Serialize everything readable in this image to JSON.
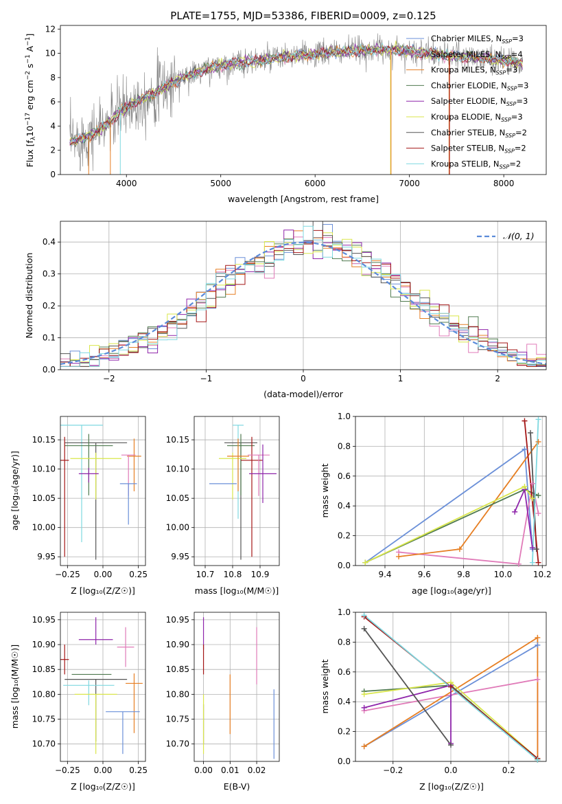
{
  "figure": {
    "title": "PLATE=1755, MJD=53386, FIBERID=0009, z=0.125"
  },
  "colors": {
    "Chabrier MILES": "#6a8fd8",
    "Salpeter MILES": "#e07ab8",
    "Kroupa MILES": "#e67e22",
    "Chabrier ELODIE": "#4f7a4f",
    "Salpeter ELODIE": "#8e24aa",
    "Kroupa ELODIE": "#d9e64a",
    "Chabrier STELIB": "#555555",
    "Salpeter STELIB": "#a31515",
    "Kroupa STELIB": "#7fd8e0",
    "gaussian": "#5b8bd9",
    "data": "#808080"
  },
  "chart_data": [
    {
      "id": "spectrum",
      "type": "line",
      "title": "PLATE=1755, MJD=53386, FIBERID=0009, z=0.125",
      "xlabel": "wavelength [Angstrom, rest frame]",
      "ylabel": "Flux [f_λ 10^-17 erg cm^-2 s^-1 A^-1]",
      "xlim": [
        3300,
        8450
      ],
      "ylim": [
        0,
        12.3
      ],
      "xticks": [
        4000,
        5000,
        6000,
        7000,
        8000
      ],
      "yticks": [
        0,
        2,
        4,
        6,
        8,
        10,
        12
      ],
      "grid": false,
      "legend_position": "right",
      "legend": [
        {
          "series": "Chabrier MILES",
          "text": "Chabrier MILES, N",
          "sub": "SSP",
          "suffix": "=3"
        },
        {
          "series": "Salpeter MILES",
          "text": "Salpeter MILES, N",
          "sub": "SSP",
          "suffix": "=4"
        },
        {
          "series": "Kroupa MILES",
          "text": "Kroupa MILES, N",
          "sub": "SSP",
          "suffix": "=3"
        },
        {
          "series": "Chabrier ELODIE",
          "text": "Chabrier ELODIE, N",
          "sub": "SSP",
          "suffix": "=3"
        },
        {
          "series": "Salpeter ELODIE",
          "text": "Salpeter ELODIE, N",
          "sub": "SSP",
          "suffix": "=3"
        },
        {
          "series": "Kroupa ELODIE",
          "text": "Kroupa ELODIE, N",
          "sub": "SSP",
          "suffix": "=3"
        },
        {
          "series": "Chabrier STELIB",
          "text": "Chabrier STELIB, N",
          "sub": "SSP",
          "suffix": "=2"
        },
        {
          "series": "Salpeter STELIB",
          "text": "Salpeter STELIB, N",
          "sub": "SSP",
          "suffix": "=2"
        },
        {
          "series": "Kroupa STELIB",
          "text": "Kroupa STELIB, N",
          "sub": "SSP",
          "suffix": "=2"
        }
      ],
      "continuum": [
        [
          3400,
          2.7
        ],
        [
          3550,
          3.0
        ],
        [
          3700,
          3.6
        ],
        [
          3850,
          4.5
        ],
        [
          3950,
          5.3
        ],
        [
          4100,
          6.0
        ],
        [
          4250,
          6.6
        ],
        [
          4400,
          7.2
        ],
        [
          4550,
          7.8
        ],
        [
          4700,
          8.3
        ],
        [
          4850,
          8.7
        ],
        [
          5000,
          9.0
        ],
        [
          5200,
          9.2
        ],
        [
          5400,
          9.4
        ],
        [
          5600,
          9.6
        ],
        [
          5800,
          9.8
        ],
        [
          6000,
          9.9
        ],
        [
          6200,
          10.1
        ],
        [
          6400,
          10.2
        ],
        [
          6600,
          10.3
        ],
        [
          6800,
          10.3
        ],
        [
          7000,
          10.2
        ],
        [
          7200,
          10.0
        ],
        [
          7400,
          9.8
        ],
        [
          7600,
          9.7
        ],
        [
          7800,
          9.6
        ],
        [
          8000,
          9.4
        ],
        [
          8200,
          9.2
        ]
      ],
      "drops": [
        {
          "x": 3600,
          "series": "Kroupa MILES",
          "to": 0
        },
        {
          "x": 3830,
          "series": "Kroupa MILES",
          "to": 0
        },
        {
          "x": 3935,
          "series": "Kroupa STELIB",
          "to": 0
        },
        {
          "x": 6800,
          "series": "Kroupa ELODIE",
          "to": 0
        },
        {
          "x": 6805,
          "series": "Kroupa MILES",
          "to": 0
        },
        {
          "x": 7420,
          "series": "Kroupa MILES",
          "to": 0
        },
        {
          "x": 7425,
          "series": "Salpeter STELIB",
          "to": 0
        }
      ]
    },
    {
      "id": "residuals",
      "type": "histogram",
      "xlabel": "(data-model)/error",
      "ylabel": "Normed distribution",
      "xlim": [
        -2.5,
        2.5
      ],
      "ylim": [
        0,
        0.465
      ],
      "xticks": [
        -2,
        -1,
        0,
        1,
        2
      ],
      "yticks": [
        0.0,
        0.1,
        0.2,
        0.3,
        0.4
      ],
      "ytick_labels": [
        "0.0",
        "0.1",
        "0.2",
        "0.3",
        "0.4"
      ],
      "xtick_labels": [
        "−2",
        "−1",
        "0",
        "1",
        "2"
      ],
      "grid": true,
      "legend_position": "top-right",
      "legend": "𝒩(0, 1)",
      "bin_width": 0.1,
      "gaussian": {
        "mean": 0,
        "sigma": 1,
        "style": "dashed"
      }
    },
    {
      "id": "age_vs_Z",
      "type": "errorbar",
      "xlabel": "Z [log₁₀(Z/Z☉)]",
      "ylabel": "age [log₁₀(age/yr)]",
      "xlim": [
        -0.3,
        0.3
      ],
      "ylim": [
        9.935,
        10.19
      ],
      "xticks": [
        -0.25,
        0.0,
        0.25
      ],
      "xtick_labels": [
        "−0.25",
        "0.00",
        "0.25"
      ],
      "yticks": [
        9.95,
        10.0,
        10.05,
        10.1,
        10.15
      ],
      "ytick_labels": [
        "9.95",
        "10.00",
        "10.05",
        "10.10",
        "10.15"
      ],
      "grid": true,
      "points": [
        {
          "series": "Kroupa STELIB",
          "x": -0.15,
          "xerr": 0.15,
          "y": 10.175,
          "yerr_low": 0.2,
          "yerr_high": 0.0
        },
        {
          "series": "Chabrier STELIB",
          "x": -0.05,
          "xerr": 0.22,
          "y": 10.145,
          "yerr_low": 0.2,
          "yerr_high": 0.0
        },
        {
          "series": "Chabrier ELODIE",
          "x": -0.1,
          "xerr": 0.17,
          "y": 10.14,
          "yerr_low": 0.085,
          "yerr_high": 0.02
        },
        {
          "series": "Salpeter STELIB",
          "x": -0.27,
          "xerr": 0.03,
          "y": 10.115,
          "yerr_low": 0.165,
          "yerr_high": 0.04
        },
        {
          "series": "Kroupa ELODIE",
          "x": -0.05,
          "xerr": 0.18,
          "y": 10.118,
          "yerr_low": 0.07,
          "yerr_high": 0.01
        },
        {
          "series": "Salpeter ELODIE",
          "x": -0.1,
          "xerr": 0.07,
          "y": 10.092,
          "yerr_low": 0.015,
          "yerr_high": 0.01
        },
        {
          "series": "Kroupa MILES",
          "x": 0.22,
          "xerr": 0.05,
          "y": 10.122,
          "yerr_low": 0.06,
          "yerr_high": 0.03
        },
        {
          "series": "Salpeter MILES",
          "x": 0.18,
          "xerr": 0.05,
          "y": 10.124,
          "yerr_low": 0.07,
          "yerr_high": 0.0
        },
        {
          "series": "Chabrier MILES",
          "x": 0.18,
          "xerr": 0.06,
          "y": 10.075,
          "yerr_low": 0.07,
          "yerr_high": 0.0
        }
      ]
    },
    {
      "id": "age_vs_mass",
      "type": "errorbar",
      "xlabel": "mass [log₁₀(M/M☉)]",
      "ylabel": "",
      "xlim": [
        10.66,
        10.97
      ],
      "ylim": [
        9.935,
        10.19
      ],
      "xticks": [
        10.7,
        10.8,
        10.9
      ],
      "xtick_labels": [
        "10.7",
        "10.8",
        "10.9"
      ],
      "yticks": [
        9.95,
        10.0,
        10.05,
        10.1,
        10.15
      ],
      "ytick_labels": [
        "9.95",
        "10.00",
        "10.05",
        "10.10",
        "10.15"
      ],
      "grid": true,
      "points": [
        {
          "series": "Kroupa STELIB",
          "x": 10.82,
          "xerr": 0.02,
          "y": 10.175,
          "yerr_low": 0.16,
          "yerr_high": 0.0
        },
        {
          "series": "Chabrier STELIB",
          "x": 10.83,
          "xerr": 0.06,
          "y": 10.145,
          "yerr_low": 0.2,
          "yerr_high": 0.0
        },
        {
          "series": "Chabrier ELODIE",
          "x": 10.83,
          "xerr": 0.05,
          "y": 10.14,
          "yerr_low": 0.085,
          "yerr_high": 0.02
        },
        {
          "series": "Kroupa ELODIE",
          "x": 10.8,
          "xerr": 0.05,
          "y": 10.118,
          "yerr_low": 0.07,
          "yerr_high": 0.01
        },
        {
          "series": "Kroupa MILES",
          "x": 10.82,
          "xerr": 0.04,
          "y": 10.122,
          "yerr_low": 0.06,
          "yerr_high": 0.03
        },
        {
          "series": "Salpeter STELIB",
          "x": 10.87,
          "xerr": 0.04,
          "y": 10.115,
          "yerr_low": 0.165,
          "yerr_high": 0.04
        },
        {
          "series": "Salpeter MILES",
          "x": 10.895,
          "xerr": 0.04,
          "y": 10.124,
          "yerr_low": 0.07,
          "yerr_high": 0.0
        },
        {
          "series": "Salpeter ELODIE",
          "x": 10.91,
          "xerr": 0.05,
          "y": 10.092,
          "yerr_low": 0.05,
          "yerr_high": 0.05
        },
        {
          "series": "Chabrier MILES",
          "x": 10.765,
          "xerr": 0.05,
          "y": 10.075,
          "yerr_low": 0.0,
          "yerr_high": 0.0
        }
      ]
    },
    {
      "id": "weight_vs_age",
      "type": "line",
      "xlabel": "age [log₁₀(age/yr)]",
      "ylabel": "mass weight",
      "xlim": [
        9.25,
        10.22
      ],
      "ylim": [
        0,
        1.0
      ],
      "xticks": [
        9.4,
        9.6,
        9.8,
        10.0,
        10.2
      ],
      "xtick_labels": [
        "9.4",
        "9.6",
        "9.8",
        "10.0",
        "10.2"
      ],
      "yticks": [
        0.0,
        0.2,
        0.4,
        0.6,
        0.8,
        1.0
      ],
      "ytick_labels": [
        "0.0",
        "0.2",
        "0.4",
        "0.6",
        "0.8",
        "1.0"
      ],
      "grid": true,
      "series": [
        {
          "name": "Chabrier MILES",
          "x": [
            9.3,
            10.11,
            10.15
          ],
          "y": [
            0.02,
            0.78,
            0.11
          ]
        },
        {
          "name": "Salpeter MILES",
          "x": [
            9.47,
            10.08,
            10.15,
            10.18
          ],
          "y": [
            0.09,
            0.01,
            0.55,
            0.35
          ]
        },
        {
          "name": "Kroupa MILES",
          "x": [
            9.47,
            9.78,
            10.18
          ],
          "y": [
            0.06,
            0.11,
            0.83
          ]
        },
        {
          "name": "Chabrier ELODIE",
          "x": [
            9.3,
            10.11,
            10.18
          ],
          "y": [
            0.02,
            0.51,
            0.47
          ]
        },
        {
          "name": "Salpeter ELODIE",
          "x": [
            10.06,
            10.11,
            10.15
          ],
          "y": [
            0.36,
            0.51,
            0.12
          ]
        },
        {
          "name": "Kroupa ELODIE",
          "x": [
            9.3,
            10.11,
            10.15
          ],
          "y": [
            0.02,
            0.53,
            0.45
          ]
        },
        {
          "name": "Chabrier STELIB",
          "x": [
            10.14,
            10.17
          ],
          "y": [
            0.89,
            0.11
          ]
        },
        {
          "name": "Salpeter STELIB",
          "x": [
            10.11,
            10.18
          ],
          "y": [
            0.97,
            0.02
          ]
        },
        {
          "name": "Kroupa STELIB",
          "x": [
            10.15,
            10.18
          ],
          "y": [
            0.02,
            0.98
          ]
        }
      ]
    },
    {
      "id": "mass_vs_Z",
      "type": "errorbar",
      "xlabel": "Z [log₁₀(Z/Z☉)]",
      "ylabel": "mass [log₁₀(M/M☉)]",
      "xlim": [
        -0.3,
        0.3
      ],
      "ylim": [
        10.665,
        10.965
      ],
      "xticks": [
        -0.25,
        0.0,
        0.25
      ],
      "xtick_labels": [
        "−0.25",
        "0.00",
        "0.25"
      ],
      "yticks": [
        10.7,
        10.75,
        10.8,
        10.85,
        10.9,
        10.95
      ],
      "ytick_labels": [
        "10.70",
        "10.75",
        "10.80",
        "10.85",
        "10.90",
        "10.95"
      ],
      "grid": true,
      "points": [
        {
          "series": "Salpeter ELODIE",
          "x": -0.05,
          "xerr": 0.12,
          "y": 10.91,
          "yerr_low": 0.01,
          "yerr_high": 0.045
        },
        {
          "series": "Salpeter MILES",
          "x": 0.16,
          "xerr": 0.06,
          "y": 10.895,
          "yerr_low": 0.04,
          "yerr_high": 0.04
        },
        {
          "series": "Salpeter STELIB",
          "x": -0.27,
          "xerr": 0.03,
          "y": 10.87,
          "yerr_low": 0.03,
          "yerr_high": 0.03
        },
        {
          "series": "Chabrier STELIB",
          "x": -0.05,
          "xerr": 0.22,
          "y": 10.83,
          "yerr_low": 0.125,
          "yerr_high": 0.0
        },
        {
          "series": "Chabrier ELODIE",
          "x": -0.08,
          "xerr": 0.14,
          "y": 10.84,
          "yerr_low": 0.0,
          "yerr_high": 0.0
        },
        {
          "series": "Kroupa MILES",
          "x": 0.22,
          "xerr": 0.06,
          "y": 10.822,
          "yerr_low": 0.1,
          "yerr_high": 0.02
        },
        {
          "series": "Kroupa STELIB",
          "x": -0.1,
          "xerr": 0.18,
          "y": 10.818,
          "yerr_low": 0.04,
          "yerr_high": 0.01
        },
        {
          "series": "Kroupa ELODIE",
          "x": -0.05,
          "xerr": 0.15,
          "y": 10.8,
          "yerr_low": 0.12,
          "yerr_high": 0.0
        },
        {
          "series": "Chabrier MILES",
          "x": 0.14,
          "xerr": 0.12,
          "y": 10.765,
          "yerr_low": 0.085,
          "yerr_high": 0.0
        }
      ]
    },
    {
      "id": "mass_vs_ebv",
      "type": "errorbar",
      "xlabel": "E(B-V)",
      "ylabel": "",
      "xlim": [
        -0.0035,
        0.0285
      ],
      "ylim": [
        10.665,
        10.965
      ],
      "xticks": [
        0.0,
        0.01,
        0.02
      ],
      "xtick_labels": [
        "0.00",
        "0.01",
        "0.02"
      ],
      "yticks": [
        10.7,
        10.75,
        10.8,
        10.85,
        10.9,
        10.95
      ],
      "ytick_labels": [
        "10.70",
        "10.75",
        "10.80",
        "10.85",
        "10.90",
        "10.95"
      ],
      "grid": true,
      "points": [
        {
          "series": "Salpeter ELODIE",
          "x": 0.0,
          "xerr": 0.0,
          "y": 10.91,
          "yerr_low": 0.02,
          "yerr_high": 0.045
        },
        {
          "series": "Salpeter STELIB",
          "x": 0.0,
          "xerr": 0.0,
          "y": 10.87,
          "yerr_low": 0.03,
          "yerr_high": 0.03
        },
        {
          "series": "Chabrier STELIB",
          "x": 0.0,
          "xerr": 0.0,
          "y": 10.75,
          "yerr_low": 0.05,
          "yerr_high": 0.03
        },
        {
          "series": "Kroupa ELODIE",
          "x": 0.0,
          "xerr": 0.0,
          "y": 10.74,
          "yerr_low": 0.06,
          "yerr_high": 0.06
        },
        {
          "series": "Kroupa MILES",
          "x": 0.01,
          "xerr": 0.0,
          "y": 10.78,
          "yerr_low": 0.06,
          "yerr_high": 0.06
        },
        {
          "series": "Salpeter MILES",
          "x": 0.02,
          "xerr": 0.0,
          "y": 10.88,
          "yerr_low": 0.06,
          "yerr_high": 0.055
        },
        {
          "series": "Chabrier MILES",
          "x": 0.0265,
          "xerr": 0.0,
          "y": 10.75,
          "yerr_low": 0.08,
          "yerr_high": 0.06
        }
      ]
    },
    {
      "id": "weight_vs_Z",
      "type": "line",
      "xlabel": "Z [log₁₀(Z/Z☉)]",
      "ylabel": "mass weight",
      "xlim": [
        -0.33,
        0.33
      ],
      "ylim": [
        0,
        1.0
      ],
      "xticks": [
        -0.2,
        0.0,
        0.2
      ],
      "xtick_labels": [
        "−0.2",
        "0.0",
        "0.2"
      ],
      "yticks": [
        0.0,
        0.2,
        0.4,
        0.6,
        0.8,
        1.0
      ],
      "ytick_labels": [
        "0.0",
        "0.2",
        "0.4",
        "0.6",
        "0.8",
        "1.0"
      ],
      "grid": true,
      "series": [
        {
          "name": "Chabrier MILES",
          "x": [
            -0.3,
            0.3
          ],
          "y": [
            0.1,
            0.78
          ]
        },
        {
          "name": "Salpeter MILES",
          "x": [
            -0.3,
            0.3,
            0.3
          ],
          "y": [
            0.34,
            0.55,
            0.02
          ]
        },
        {
          "name": "Kroupa MILES",
          "x": [
            -0.3,
            0.3,
            0.3
          ],
          "y": [
            0.1,
            0.83,
            0.01
          ]
        },
        {
          "name": "Chabrier ELODIE",
          "x": [
            -0.3,
            0.0,
            0.3
          ],
          "y": [
            0.47,
            0.51,
            0.01
          ]
        },
        {
          "name": "Salpeter ELODIE",
          "x": [
            -0.3,
            0.0,
            0.0
          ],
          "y": [
            0.36,
            0.51,
            0.12
          ]
        },
        {
          "name": "Kroupa ELODIE",
          "x": [
            -0.3,
            0.0,
            0.3
          ],
          "y": [
            0.45,
            0.53,
            0.02
          ]
        },
        {
          "name": "Chabrier STELIB",
          "x": [
            -0.3,
            0.0
          ],
          "y": [
            0.89,
            0.11
          ]
        },
        {
          "name": "Salpeter STELIB",
          "x": [
            -0.3,
            0.0,
            0.3
          ],
          "y": [
            0.97,
            0.5,
            0.02
          ]
        },
        {
          "name": "Kroupa STELIB",
          "x": [
            -0.3,
            0.3
          ],
          "y": [
            0.98,
            0.01
          ]
        }
      ]
    }
  ]
}
